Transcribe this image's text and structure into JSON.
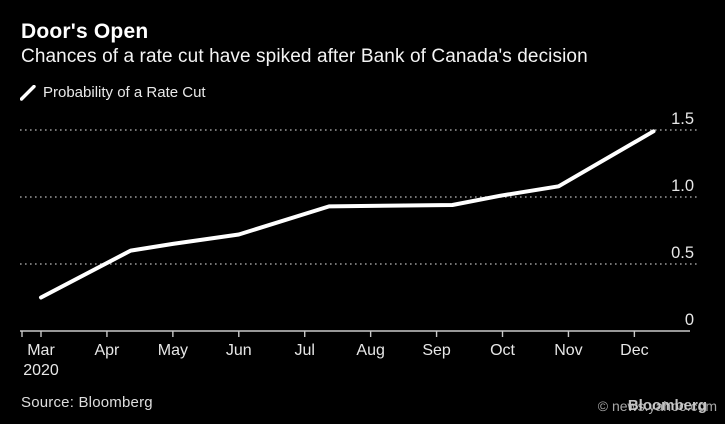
{
  "header": {
    "title": "Door's Open",
    "subtitle": "Chances of a rate cut have spiked after Bank of Canada's decision"
  },
  "legend": {
    "label": "Probability of a Rate Cut"
  },
  "chart_data": {
    "type": "line",
    "title": "Door's Open",
    "subtitle": "Chances of a rate cut have spiked after Bank of Canada's decision",
    "series": [
      {
        "name": "Probability of a Rate Cut",
        "color": "#ffffff",
        "x_unit": "months since Mar 2020 tick",
        "points": [
          {
            "x": 0.0,
            "v": 0.25
          },
          {
            "x": 1.36,
            "v": 0.6
          },
          {
            "x": 2.0,
            "v": 0.65
          },
          {
            "x": 3.0,
            "v": 0.72
          },
          {
            "x": 4.37,
            "v": 0.93
          },
          {
            "x": 6.24,
            "v": 0.94
          },
          {
            "x": 6.97,
            "v": 1.01
          },
          {
            "x": 7.85,
            "v": 1.08
          },
          {
            "x": 9.29,
            "v": 1.49
          }
        ]
      }
    ],
    "x_tick_labels": [
      "Mar",
      "Apr",
      "May",
      "Jun",
      "Jul",
      "Aug",
      "Sep",
      "Oct",
      "Nov",
      "Dec"
    ],
    "x_axis_year": "2020",
    "y_tick_values": [
      0,
      0.5,
      1.0,
      1.5
    ],
    "y_tick_labels": [
      "0",
      "0.5",
      "1.0",
      "1.5"
    ],
    "ylim": [
      0,
      1.55
    ],
    "grid": "horizontal-dotted",
    "legend_position": "top-left",
    "colors": {
      "background": "#000000",
      "line": "#ffffff",
      "grid_dots": "#999999",
      "axis": "#c9c9c9",
      "tick_text": "#e7e7e7"
    }
  },
  "footer": {
    "source": "Source: Bloomberg",
    "watermark_copyright": "© news.yahoo.com",
    "watermark_brand": "Bloomberg"
  }
}
